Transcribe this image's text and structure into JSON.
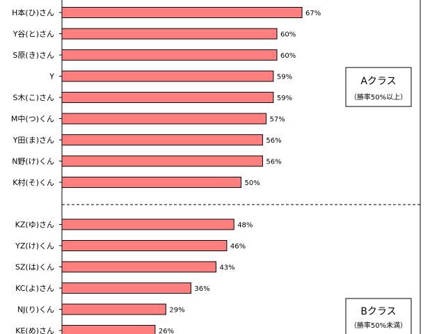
{
  "chart_data": {
    "type": "bar",
    "orientation": "horizontal",
    "categories": [
      "H本(ひ)さん",
      "Y谷(と)さん",
      "S原(き)さん",
      "Y",
      "S木(こ)さん",
      "M中(つ)くん",
      "Y田(ま)さん",
      "N野(け)くん",
      "K村(そ)くん",
      "KZ(ゆ)さん",
      "YZ(け)くん",
      "SZ(は)くん",
      "KC(よ)さん",
      "NJ(り)くん",
      "KE(め)さん"
    ],
    "values": [
      67,
      60,
      60,
      59,
      59,
      57,
      56,
      56,
      50,
      48,
      46,
      43,
      36,
      29,
      26
    ],
    "value_labels": [
      "67%",
      "60%",
      "60%",
      "59%",
      "59%",
      "57%",
      "56%",
      "56%",
      "50%",
      "48%",
      "46%",
      "43%",
      "36%",
      "29%",
      "26%"
    ],
    "xlim": [
      0,
      100
    ],
    "bar_color": "#ff7f7f",
    "bar_edge_color": "#000000",
    "grid": false,
    "groups": [
      {
        "title": "Aクラス",
        "subtitle": "（勝率50%以上）",
        "count": 9
      },
      {
        "title": "Bクラス",
        "subtitle": "（勝率50%未満）",
        "count": 6
      }
    ]
  }
}
